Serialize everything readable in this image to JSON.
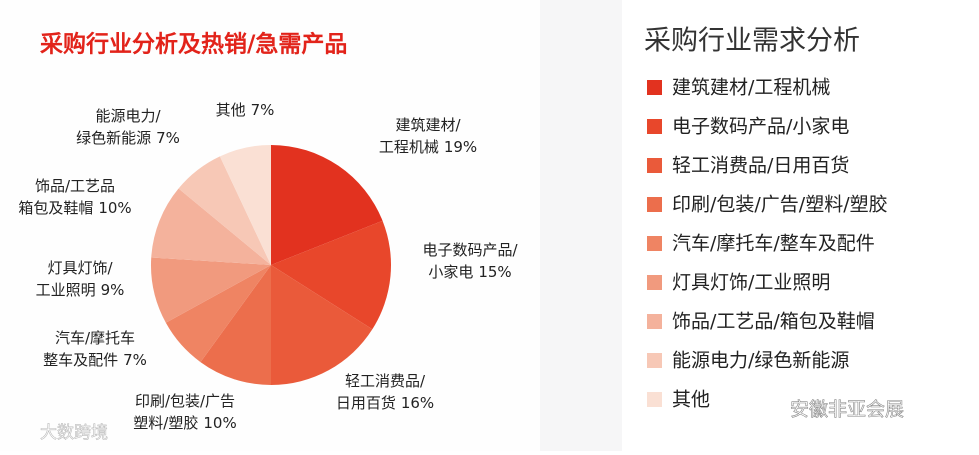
{
  "chart_data": {
    "type": "pie",
    "title": "采购行业分析及热销/急需产品",
    "legend_title": "采购行业需求分析",
    "categories": [
      "建筑建材/工程机械",
      "电子数码产品/小家电",
      "轻工消费品/日用百货",
      "印刷/包装/广告/塑料/塑胶",
      "汽车/摩托车/整车及配件",
      "灯具灯饰/工业照明",
      "饰品/工艺品/箱包及鞋帽",
      "能源电力/绿色新能源",
      "其他"
    ],
    "slice_labels": [
      [
        "建筑建材/",
        "工程机械"
      ],
      [
        "电子数码产品/",
        "小家电"
      ],
      [
        "轻工消费品/",
        "日用百货"
      ],
      [
        "印刷/包装/广告",
        "塑料/塑胶"
      ],
      [
        "汽车/摩托车",
        "整车及配件"
      ],
      [
        "灯具灯饰/",
        "工业照明"
      ],
      [
        "饰品/工艺品",
        "箱包及鞋帽"
      ],
      [
        "能源电力/",
        "绿色新能源"
      ],
      [
        "其他"
      ]
    ],
    "values": [
      19,
      15,
      16,
      10,
      7,
      9,
      10,
      7,
      7
    ],
    "value_labels": [
      "19%",
      "15%",
      "16%",
      "10%",
      "7%",
      "9%",
      "10%",
      "7%",
      "7%"
    ],
    "colors": [
      "#e2321f",
      "#e8472b",
      "#ea5a3a",
      "#ec6e4c",
      "#ef8463",
      "#f19a7e",
      "#f4b29c",
      "#f7c8b6",
      "#fae0d4"
    ],
    "legend_position": "right"
  },
  "watermarks": [
    "大数跨境",
    "安徽非亚会展"
  ]
}
